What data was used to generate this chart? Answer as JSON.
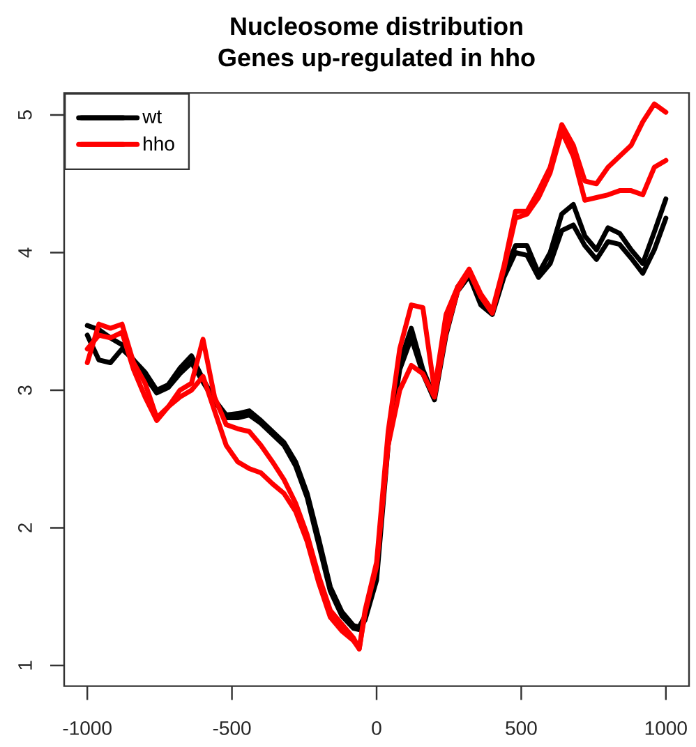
{
  "chart_data": {
    "type": "line",
    "title": "Nucleosome distribution",
    "subtitle": "Genes up-regulated in hho",
    "x": [
      -1000,
      -960,
      -920,
      -880,
      -840,
      -800,
      -760,
      -720,
      -680,
      -640,
      -600,
      -560,
      -520,
      -480,
      -440,
      -400,
      -360,
      -320,
      -280,
      -240,
      -200,
      -160,
      -120,
      -80,
      -60,
      -40,
      0,
      40,
      80,
      120,
      160,
      200,
      240,
      280,
      320,
      360,
      400,
      440,
      480,
      520,
      560,
      600,
      640,
      680,
      720,
      760,
      800,
      840,
      880,
      920,
      960,
      1000
    ],
    "series": [
      {
        "name": "wt",
        "color": "#000000",
        "values": [
          3.47,
          3.44,
          3.38,
          3.33,
          3.22,
          3.13,
          3.0,
          3.04,
          3.16,
          3.25,
          3.08,
          2.93,
          2.82,
          2.83,
          2.85,
          2.78,
          2.7,
          2.62,
          2.48,
          2.25,
          1.92,
          1.57,
          1.39,
          1.29,
          1.28,
          1.36,
          1.68,
          2.65,
          3.2,
          3.45,
          3.15,
          2.95,
          3.45,
          3.75,
          3.85,
          3.65,
          3.58,
          3.85,
          4.05,
          4.05,
          3.85,
          4.0,
          4.28,
          4.35,
          4.12,
          4.02,
          4.18,
          4.14,
          4.02,
          3.92,
          4.15,
          4.39
        ]
      },
      {
        "color": "#000000",
        "values": [
          3.4,
          3.22,
          3.2,
          3.3,
          3.22,
          3.1,
          2.98,
          3.02,
          3.12,
          3.2,
          3.06,
          2.92,
          2.8,
          2.8,
          2.82,
          2.76,
          2.68,
          2.6,
          2.45,
          2.22,
          1.88,
          1.54,
          1.36,
          1.27,
          1.26,
          1.33,
          1.62,
          2.6,
          3.15,
          3.38,
          3.12,
          2.93,
          3.4,
          3.72,
          3.83,
          3.62,
          3.55,
          3.82,
          4.0,
          3.98,
          3.82,
          3.92,
          4.16,
          4.2,
          4.05,
          3.95,
          4.08,
          4.06,
          3.96,
          3.85,
          4.02,
          4.25
        ]
      },
      {
        "name": "hho",
        "color": "#ff0000",
        "values": [
          3.2,
          3.48,
          3.45,
          3.48,
          3.2,
          3.05,
          2.8,
          2.88,
          3.0,
          3.05,
          3.37,
          2.95,
          2.75,
          2.72,
          2.7,
          2.6,
          2.48,
          2.35,
          2.18,
          1.95,
          1.65,
          1.4,
          1.3,
          1.2,
          1.12,
          1.4,
          1.75,
          2.7,
          3.3,
          3.62,
          3.6,
          3.0,
          3.55,
          3.75,
          3.88,
          3.7,
          3.58,
          3.9,
          4.3,
          4.3,
          4.45,
          4.62,
          4.93,
          4.78,
          4.52,
          4.5,
          4.62,
          4.7,
          4.78,
          4.95,
          5.08,
          5.02
        ]
      },
      {
        "color": "#ff0000",
        "values": [
          3.3,
          3.4,
          3.38,
          3.42,
          3.15,
          2.95,
          2.78,
          2.88,
          2.95,
          3.0,
          3.1,
          2.85,
          2.6,
          2.48,
          2.43,
          2.4,
          2.32,
          2.25,
          2.12,
          1.9,
          1.6,
          1.35,
          1.25,
          1.18,
          1.12,
          1.38,
          1.72,
          2.6,
          3.0,
          3.18,
          3.12,
          2.95,
          3.42,
          3.72,
          3.86,
          3.68,
          3.56,
          3.88,
          4.25,
          4.28,
          4.4,
          4.58,
          4.88,
          4.7,
          4.38,
          4.4,
          4.42,
          4.45,
          4.45,
          4.42,
          4.62,
          4.67
        ]
      }
    ],
    "xlim": [
      -1080,
      1080
    ],
    "ylim": [
      0.85,
      5.16
    ],
    "xticks": [
      -1000,
      -500,
      0,
      500,
      1000
    ],
    "yticks": [
      1,
      2,
      3,
      4,
      5
    ],
    "legend": "top left",
    "marker": "none",
    "line_style": "solid"
  }
}
